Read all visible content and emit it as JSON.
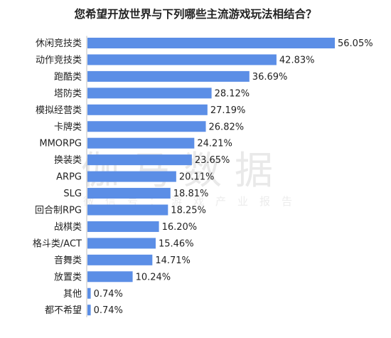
{
  "watermark": {
    "text": "伽马数据",
    "subtext": "微信号：游戏产业报告"
  },
  "colors": {
    "bar": "#5b8ee6",
    "axis": "#bfbfbf",
    "text": "#222222"
  },
  "chart_data": {
    "type": "bar",
    "orientation": "horizontal",
    "title": "您希望开放世界与下列哪些主流游戏玩法相结合？",
    "categories": [
      "休闲竞技类",
      "动作竞技类",
      "跑酷类",
      "塔防类",
      "模拟经营类",
      "卡牌类",
      "MMORPG",
      "换装类",
      "ARPG",
      "SLG",
      "回合制RPG",
      "战棋类",
      "格斗类/ACT",
      "音舞类",
      "放置类",
      "其他",
      "都不希望"
    ],
    "values": [
      56.05,
      42.83,
      36.69,
      28.12,
      27.19,
      26.82,
      24.21,
      23.65,
      20.11,
      18.81,
      18.25,
      16.2,
      15.46,
      14.71,
      10.24,
      0.74,
      0.74
    ],
    "value_labels": [
      "56.05%",
      "42.83%",
      "36.69%",
      "28.12%",
      "27.19%",
      "26.82%",
      "24.21%",
      "23.65%",
      "20.11%",
      "18.81%",
      "18.25%",
      "16.20%",
      "15.46%",
      "14.71%",
      "10.24%",
      "0.74%",
      "0.74%"
    ],
    "xlabel": "",
    "ylabel": "",
    "xlim": [
      0,
      56.05
    ],
    "grid": false,
    "legend": "none"
  }
}
